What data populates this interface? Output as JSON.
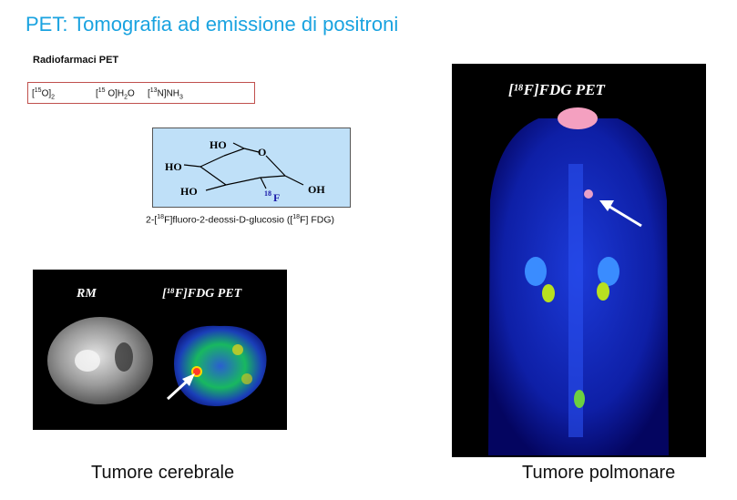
{
  "title": "PET: Tomografia ad emissione di positroni",
  "section_heading": "Radiofarmaci PET",
  "tracers": {
    "oxygen": {
      "open": "[",
      "sup": "15",
      "mid": "O]",
      "sub": "2"
    },
    "water": {
      "open": "[",
      "sup": "15",
      "mid": " O]H",
      "sub": "2",
      "tail": "O"
    },
    "ammonia": {
      "open": "[",
      "sup": "13",
      "mid": "N]NH",
      "sub": "3"
    }
  },
  "molecule": {
    "ho_top": "HO",
    "o_ring": "O",
    "ho_left": "HO",
    "ho_bottom": "HO",
    "oh_right": "OH",
    "f_sup": "18",
    "f": "F"
  },
  "caption": {
    "part1": "2-[",
    "sup1": "18",
    "part2": "F]fluoro-2-deossi-D-glucosio ([",
    "sup2": "18",
    "part3": "F] FDG)"
  },
  "brain_image": {
    "label_left": "RM",
    "label_right": "[¹⁸F]FDG PET"
  },
  "lung_image": {
    "label": "[¹⁸F]FDG PET"
  },
  "labels": {
    "brain": "Tumore cerebrale",
    "lung": "Tumore polmonare"
  }
}
